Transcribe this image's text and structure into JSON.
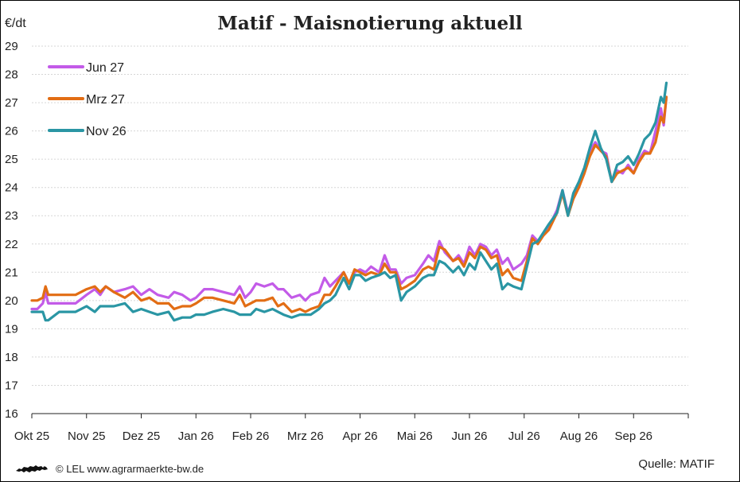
{
  "chart_data": {
    "type": "line",
    "title": "Matif - Maisnotierung aktuell",
    "ylabel": "€/dt",
    "ylim": [
      16,
      29
    ],
    "yticks": [
      16,
      17,
      18,
      19,
      20,
      21,
      22,
      23,
      24,
      25,
      26,
      27,
      28,
      29
    ],
    "x_tick_labels": [
      "Okt 25",
      "Nov 25",
      "Dez 25",
      "Jan 26",
      "Feb 26",
      "Mrz 26",
      "Apr 26",
      "Mai 26",
      "Jun 26",
      "Jul 26",
      "Aug 26",
      "Sep 26"
    ],
    "x_unit": "months since Okt 25",
    "xlim": [
      0,
      12.0
    ],
    "grid": true,
    "legend_position": "top-left",
    "series": [
      {
        "name": "Jun 27",
        "color": "#c35be8",
        "points": [
          [
            0.0,
            19.7
          ],
          [
            0.1,
            19.7
          ],
          [
            0.2,
            19.9
          ],
          [
            0.25,
            20.3
          ],
          [
            0.3,
            19.9
          ],
          [
            0.5,
            19.9
          ],
          [
            0.8,
            19.9
          ],
          [
            1.0,
            20.2
          ],
          [
            1.15,
            20.4
          ],
          [
            1.25,
            20.2
          ],
          [
            1.35,
            20.5
          ],
          [
            1.5,
            20.3
          ],
          [
            1.7,
            20.4
          ],
          [
            1.85,
            20.5
          ],
          [
            2.0,
            20.2
          ],
          [
            2.15,
            20.4
          ],
          [
            2.3,
            20.2
          ],
          [
            2.5,
            20.1
          ],
          [
            2.6,
            20.3
          ],
          [
            2.75,
            20.2
          ],
          [
            2.9,
            20.0
          ],
          [
            3.0,
            20.1
          ],
          [
            3.15,
            20.4
          ],
          [
            3.3,
            20.4
          ],
          [
            3.5,
            20.3
          ],
          [
            3.7,
            20.2
          ],
          [
            3.8,
            20.5
          ],
          [
            3.9,
            20.1
          ],
          [
            4.0,
            20.3
          ],
          [
            4.1,
            20.6
          ],
          [
            4.25,
            20.5
          ],
          [
            4.4,
            20.6
          ],
          [
            4.5,
            20.4
          ],
          [
            4.6,
            20.4
          ],
          [
            4.75,
            20.1
          ],
          [
            4.9,
            20.2
          ],
          [
            5.0,
            20.0
          ],
          [
            5.1,
            20.2
          ],
          [
            5.25,
            20.3
          ],
          [
            5.35,
            20.8
          ],
          [
            5.45,
            20.5
          ],
          [
            5.55,
            20.7
          ],
          [
            5.7,
            21.0
          ],
          [
            5.8,
            20.6
          ],
          [
            5.9,
            21.0
          ],
          [
            6.0,
            21.1
          ],
          [
            6.1,
            21.0
          ],
          [
            6.2,
            21.2
          ],
          [
            6.35,
            21.0
          ],
          [
            6.45,
            21.6
          ],
          [
            6.55,
            21.1
          ],
          [
            6.65,
            21.1
          ],
          [
            6.75,
            20.6
          ],
          [
            6.85,
            20.8
          ],
          [
            7.0,
            20.9
          ],
          [
            7.15,
            21.3
          ],
          [
            7.25,
            21.6
          ],
          [
            7.35,
            21.4
          ],
          [
            7.45,
            22.1
          ],
          [
            7.55,
            21.7
          ],
          [
            7.7,
            21.4
          ],
          [
            7.8,
            21.6
          ],
          [
            7.9,
            21.3
          ],
          [
            8.0,
            21.9
          ],
          [
            8.1,
            21.6
          ],
          [
            8.2,
            22.0
          ],
          [
            8.3,
            21.9
          ],
          [
            8.4,
            21.6
          ],
          [
            8.5,
            21.8
          ],
          [
            8.6,
            21.3
          ],
          [
            8.7,
            21.5
          ],
          [
            8.8,
            21.1
          ],
          [
            8.95,
            21.3
          ],
          [
            9.05,
            21.6
          ],
          [
            9.15,
            22.3
          ],
          [
            9.25,
            22.1
          ],
          [
            9.35,
            22.3
          ],
          [
            9.45,
            22.6
          ],
          [
            9.6,
            23.2
          ],
          [
            9.7,
            23.9
          ],
          [
            9.8,
            23.1
          ],
          [
            9.9,
            23.7
          ],
          [
            10.0,
            24.0
          ],
          [
            10.1,
            24.6
          ],
          [
            10.2,
            25.3
          ],
          [
            10.3,
            25.6
          ],
          [
            10.4,
            25.3
          ],
          [
            10.5,
            25.2
          ],
          [
            10.6,
            24.2
          ],
          [
            10.7,
            24.6
          ],
          [
            10.8,
            24.5
          ],
          [
            10.9,
            24.8
          ],
          [
            11.0,
            24.5
          ],
          [
            11.1,
            25.0
          ],
          [
            11.2,
            25.3
          ],
          [
            11.3,
            25.2
          ],
          [
            11.4,
            26.0
          ],
          [
            11.5,
            26.8
          ],
          [
            11.55,
            26.2
          ],
          [
            11.6,
            27.2
          ]
        ]
      },
      {
        "name": "Mrz 27",
        "color": "#e26d14",
        "points": [
          [
            0.0,
            20.0
          ],
          [
            0.1,
            20.0
          ],
          [
            0.2,
            20.1
          ],
          [
            0.25,
            20.5
          ],
          [
            0.3,
            20.2
          ],
          [
            0.5,
            20.2
          ],
          [
            0.8,
            20.2
          ],
          [
            1.0,
            20.4
          ],
          [
            1.15,
            20.5
          ],
          [
            1.25,
            20.3
          ],
          [
            1.35,
            20.5
          ],
          [
            1.5,
            20.3
          ],
          [
            1.7,
            20.1
          ],
          [
            1.85,
            20.3
          ],
          [
            2.0,
            20.0
          ],
          [
            2.15,
            20.1
          ],
          [
            2.3,
            19.9
          ],
          [
            2.5,
            19.9
          ],
          [
            2.6,
            19.7
          ],
          [
            2.75,
            19.8
          ],
          [
            2.9,
            19.8
          ],
          [
            3.0,
            19.9
          ],
          [
            3.15,
            20.1
          ],
          [
            3.3,
            20.1
          ],
          [
            3.5,
            20.0
          ],
          [
            3.7,
            19.9
          ],
          [
            3.8,
            20.2
          ],
          [
            3.9,
            19.8
          ],
          [
            4.0,
            19.9
          ],
          [
            4.1,
            20.0
          ],
          [
            4.25,
            20.0
          ],
          [
            4.4,
            20.1
          ],
          [
            4.5,
            19.8
          ],
          [
            4.6,
            19.9
          ],
          [
            4.75,
            19.6
          ],
          [
            4.9,
            19.7
          ],
          [
            5.0,
            19.6
          ],
          [
            5.1,
            19.7
          ],
          [
            5.25,
            19.8
          ],
          [
            5.35,
            20.2
          ],
          [
            5.45,
            20.2
          ],
          [
            5.55,
            20.5
          ],
          [
            5.7,
            21.0
          ],
          [
            5.8,
            20.6
          ],
          [
            5.9,
            21.1
          ],
          [
            6.0,
            21.0
          ],
          [
            6.1,
            20.9
          ],
          [
            6.2,
            21.0
          ],
          [
            6.35,
            20.9
          ],
          [
            6.45,
            21.3
          ],
          [
            6.55,
            21.0
          ],
          [
            6.65,
            21.0
          ],
          [
            6.75,
            20.4
          ],
          [
            6.85,
            20.5
          ],
          [
            7.0,
            20.7
          ],
          [
            7.15,
            21.1
          ],
          [
            7.25,
            21.2
          ],
          [
            7.35,
            21.1
          ],
          [
            7.45,
            21.9
          ],
          [
            7.55,
            21.8
          ],
          [
            7.7,
            21.4
          ],
          [
            7.8,
            21.5
          ],
          [
            7.9,
            21.2
          ],
          [
            8.0,
            21.7
          ],
          [
            8.1,
            21.5
          ],
          [
            8.2,
            21.9
          ],
          [
            8.3,
            21.8
          ],
          [
            8.4,
            21.5
          ],
          [
            8.5,
            21.6
          ],
          [
            8.6,
            20.9
          ],
          [
            8.7,
            21.1
          ],
          [
            8.8,
            20.8
          ],
          [
            8.95,
            20.7
          ],
          [
            9.05,
            21.4
          ],
          [
            9.15,
            22.2
          ],
          [
            9.25,
            22.0
          ],
          [
            9.35,
            22.3
          ],
          [
            9.45,
            22.5
          ],
          [
            9.6,
            23.1
          ],
          [
            9.7,
            23.8
          ],
          [
            9.8,
            23.0
          ],
          [
            9.9,
            23.6
          ],
          [
            10.0,
            24.0
          ],
          [
            10.1,
            24.5
          ],
          [
            10.2,
            25.1
          ],
          [
            10.3,
            25.5
          ],
          [
            10.4,
            25.3
          ],
          [
            10.5,
            25.1
          ],
          [
            10.6,
            24.2
          ],
          [
            10.7,
            24.5
          ],
          [
            10.8,
            24.6
          ],
          [
            10.9,
            24.7
          ],
          [
            11.0,
            24.5
          ],
          [
            11.1,
            24.9
          ],
          [
            11.2,
            25.2
          ],
          [
            11.3,
            25.2
          ],
          [
            11.4,
            25.6
          ],
          [
            11.5,
            26.5
          ],
          [
            11.55,
            26.3
          ],
          [
            11.6,
            27.2
          ]
        ]
      },
      {
        "name": "Nov 26",
        "color": "#2a96a4",
        "points": [
          [
            0.0,
            19.6
          ],
          [
            0.1,
            19.6
          ],
          [
            0.2,
            19.6
          ],
          [
            0.25,
            19.3
          ],
          [
            0.3,
            19.3
          ],
          [
            0.5,
            19.6
          ],
          [
            0.8,
            19.6
          ],
          [
            1.0,
            19.8
          ],
          [
            1.15,
            19.6
          ],
          [
            1.25,
            19.8
          ],
          [
            1.35,
            19.8
          ],
          [
            1.5,
            19.8
          ],
          [
            1.7,
            19.9
          ],
          [
            1.85,
            19.6
          ],
          [
            2.0,
            19.7
          ],
          [
            2.15,
            19.6
          ],
          [
            2.3,
            19.5
          ],
          [
            2.5,
            19.6
          ],
          [
            2.6,
            19.3
          ],
          [
            2.75,
            19.4
          ],
          [
            2.9,
            19.4
          ],
          [
            3.0,
            19.5
          ],
          [
            3.15,
            19.5
          ],
          [
            3.3,
            19.6
          ],
          [
            3.5,
            19.7
          ],
          [
            3.7,
            19.6
          ],
          [
            3.8,
            19.5
          ],
          [
            3.9,
            19.5
          ],
          [
            4.0,
            19.5
          ],
          [
            4.1,
            19.7
          ],
          [
            4.25,
            19.6
          ],
          [
            4.4,
            19.7
          ],
          [
            4.5,
            19.6
          ],
          [
            4.6,
            19.5
          ],
          [
            4.75,
            19.4
          ],
          [
            4.9,
            19.5
          ],
          [
            5.0,
            19.5
          ],
          [
            5.1,
            19.5
          ],
          [
            5.25,
            19.7
          ],
          [
            5.35,
            19.9
          ],
          [
            5.45,
            20.0
          ],
          [
            5.55,
            20.2
          ],
          [
            5.7,
            20.8
          ],
          [
            5.8,
            20.4
          ],
          [
            5.9,
            20.9
          ],
          [
            6.0,
            20.9
          ],
          [
            6.1,
            20.7
          ],
          [
            6.2,
            20.8
          ],
          [
            6.35,
            20.9
          ],
          [
            6.45,
            21.0
          ],
          [
            6.55,
            20.8
          ],
          [
            6.65,
            20.9
          ],
          [
            6.75,
            20.0
          ],
          [
            6.85,
            20.3
          ],
          [
            7.0,
            20.5
          ],
          [
            7.15,
            20.8
          ],
          [
            7.25,
            20.9
          ],
          [
            7.35,
            20.9
          ],
          [
            7.45,
            21.4
          ],
          [
            7.55,
            21.3
          ],
          [
            7.7,
            21.0
          ],
          [
            7.8,
            21.2
          ],
          [
            7.9,
            20.9
          ],
          [
            8.0,
            21.3
          ],
          [
            8.1,
            21.1
          ],
          [
            8.2,
            21.7
          ],
          [
            8.3,
            21.4
          ],
          [
            8.4,
            21.1
          ],
          [
            8.5,
            21.3
          ],
          [
            8.6,
            20.4
          ],
          [
            8.7,
            20.6
          ],
          [
            8.8,
            20.5
          ],
          [
            8.95,
            20.4
          ],
          [
            9.05,
            21.2
          ],
          [
            9.15,
            22.0
          ],
          [
            9.25,
            22.1
          ],
          [
            9.35,
            22.4
          ],
          [
            9.45,
            22.7
          ],
          [
            9.6,
            23.1
          ],
          [
            9.7,
            23.9
          ],
          [
            9.8,
            23.0
          ],
          [
            9.9,
            23.8
          ],
          [
            10.0,
            24.2
          ],
          [
            10.1,
            24.7
          ],
          [
            10.2,
            25.4
          ],
          [
            10.3,
            26.0
          ],
          [
            10.4,
            25.4
          ],
          [
            10.5,
            25.0
          ],
          [
            10.6,
            24.2
          ],
          [
            10.7,
            24.8
          ],
          [
            10.8,
            24.9
          ],
          [
            10.9,
            25.1
          ],
          [
            11.0,
            24.8
          ],
          [
            11.1,
            25.2
          ],
          [
            11.2,
            25.7
          ],
          [
            11.3,
            25.9
          ],
          [
            11.4,
            26.3
          ],
          [
            11.5,
            27.2
          ],
          [
            11.55,
            27.0
          ],
          [
            11.6,
            27.7
          ]
        ]
      }
    ]
  },
  "header": {
    "title": "Matif - Maisnotierung aktuell",
    "unit": "€/dt"
  },
  "footer": {
    "credit": "© LEL www.agrarmaerkte-bw.de",
    "source": "Quelle: MATIF"
  },
  "icons": {
    "logo": "lion-logo-icon"
  }
}
